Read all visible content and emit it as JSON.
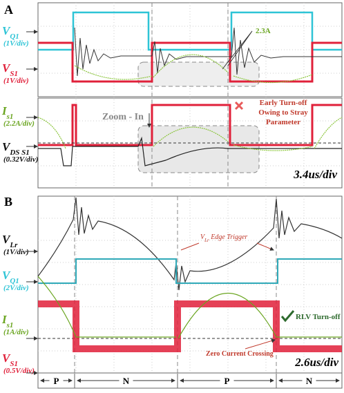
{
  "panel_a": {
    "letter": "A",
    "labels": [
      {
        "main": "V",
        "sub": "Q1",
        "scale": "(1V/div)"
      },
      {
        "main": "V",
        "sub": "S1",
        "scale": "(1V/div)"
      },
      {
        "main": "I",
        "sub": "s1",
        "scale": "(2.2A/div)"
      },
      {
        "main": "V",
        "sub": "DS S1",
        "scale": "(0.32V/div)"
      }
    ],
    "current_note": "2.3A",
    "zoom": "Zoom - In",
    "early_note": [
      "Early Turn-off",
      "Owing to Stray",
      "Parameter"
    ],
    "timebase": "3.4us/div"
  },
  "panel_b": {
    "letter": "B",
    "labels": [
      {
        "main": "V",
        "sub": "Lr",
        "scale": "(1V/div)"
      },
      {
        "main": "V",
        "sub": "Q1",
        "scale": "(2V/div)"
      },
      {
        "main": "I",
        "sub": "s1",
        "scale": "(1A/div)"
      },
      {
        "main": "V",
        "sub": "S1",
        "scale": "(0.5V/div)"
      }
    ],
    "trigger": {
      "main": "V",
      "sub": "Lr",
      "rest": " Edge Trigger"
    },
    "rlv": "RLV Turn-off",
    "zcc": "Zero Current Crossing",
    "timebase": "2.6us/div",
    "modes": [
      "P",
      "N",
      "P",
      "N"
    ]
  }
}
